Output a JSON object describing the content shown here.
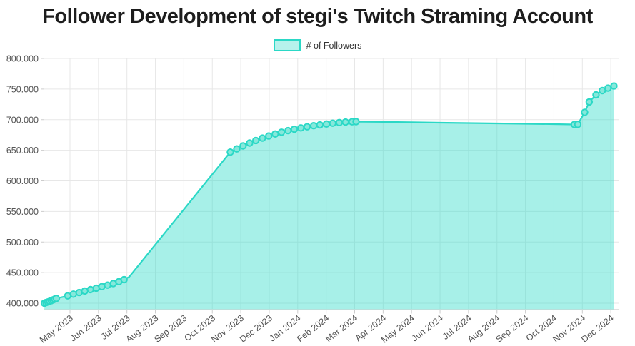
{
  "header": {
    "title": "Follower Development of stegi's Twitch Straming Account"
  },
  "legend": {
    "label": "# of Followers",
    "swatch_fill": "#b7f2ec",
    "swatch_border": "#2bd8c6"
  },
  "chart_data": {
    "type": "area",
    "title": "Follower Development of stegi's Twitch Straming Account",
    "series_name": "# of Followers",
    "x_unit": "months since May 2023 (0 = May 2023 tick, negative = late Apr 2023)",
    "x_tick_labels": [
      "May 2023",
      "Jun 2023",
      "Jul 2023",
      "Aug 2023",
      "Sep 2023",
      "Oct 2023",
      "Nov 2023",
      "Dec 2023",
      "Jan 2024",
      "Feb 2024",
      "Mar 2024",
      "Apr 2024",
      "May 2024",
      "Jun 2024",
      "Jul 2024",
      "Aug 2024",
      "Sep 2024",
      "Oct 2024",
      "Nov 2024",
      "Dec 2024"
    ],
    "y_ticks": [
      400000,
      450000,
      500000,
      550000,
      600000,
      650000,
      700000,
      750000,
      800000
    ],
    "y_tick_labels": [
      "400.000",
      "450.000",
      "500.000",
      "550.000",
      "600.000",
      "650.000",
      "700.000",
      "750.000",
      "800.000"
    ],
    "ylim": [
      386000,
      800000
    ],
    "grid": true,
    "legend_position": "top",
    "colors": {
      "line": "#2bd8c6",
      "fill": "rgba(46,219,201,0.42)",
      "marker_fill": "#86e8db",
      "grid": "#e7e7e7",
      "tick": "#cccccc",
      "axis_text": "#545454"
    },
    "points": [
      [
        -0.9,
        400000,
        1
      ],
      [
        -0.84,
        401000,
        1
      ],
      [
        -0.78,
        402000,
        1
      ],
      [
        -0.72,
        403000,
        1
      ],
      [
        -0.66,
        404200,
        1
      ],
      [
        -0.6,
        405400,
        1
      ],
      [
        -0.54,
        406600,
        1
      ],
      [
        -0.48,
        407800,
        1
      ],
      [
        -0.08,
        412000,
        1
      ],
      [
        0.12,
        414800,
        1
      ],
      [
        0.32,
        417400,
        1
      ],
      [
        0.52,
        419900,
        1
      ],
      [
        0.72,
        422300,
        1
      ],
      [
        0.92,
        424600,
        1
      ],
      [
        1.12,
        427000,
        1
      ],
      [
        1.32,
        429500,
        1
      ],
      [
        1.52,
        432200,
        1
      ],
      [
        1.72,
        435200,
        1
      ],
      [
        1.9,
        438500,
        1
      ],
      [
        2.08,
        443000,
        0
      ],
      [
        5.63,
        647000,
        1
      ],
      [
        5.86,
        652200,
        1
      ],
      [
        6.08,
        657200,
        1
      ],
      [
        6.31,
        661800,
        1
      ],
      [
        6.53,
        666000,
        1
      ],
      [
        6.76,
        669900,
        1
      ],
      [
        6.98,
        673400,
        1
      ],
      [
        7.21,
        676600,
        1
      ],
      [
        7.43,
        679500,
        1
      ],
      [
        7.66,
        682100,
        1
      ],
      [
        7.88,
        684400,
        1
      ],
      [
        8.11,
        686500,
        1
      ],
      [
        8.33,
        688400,
        1
      ],
      [
        8.56,
        690100,
        1
      ],
      [
        8.78,
        691600,
        1
      ],
      [
        9.01,
        692900,
        1
      ],
      [
        9.23,
        694200,
        1
      ],
      [
        9.46,
        695300,
        1
      ],
      [
        9.68,
        696100,
        1
      ],
      [
        9.91,
        696600,
        1
      ],
      [
        10.05,
        696800,
        1
      ],
      [
        11,
        696300,
        0
      ],
      [
        12,
        695700,
        0
      ],
      [
        13,
        695100,
        0
      ],
      [
        14,
        694500,
        0
      ],
      [
        15,
        693900,
        0
      ],
      [
        16,
        693300,
        0
      ],
      [
        17,
        692700,
        0
      ],
      [
        17.72,
        692100,
        1
      ],
      [
        17.84,
        692400,
        1
      ],
      [
        18.08,
        712000,
        1
      ],
      [
        18.24,
        729000,
        1
      ],
      [
        18.48,
        740500,
        1
      ],
      [
        18.7,
        747500,
        1
      ],
      [
        18.9,
        751500,
        1
      ],
      [
        19.11,
        755000,
        1
      ]
    ]
  }
}
